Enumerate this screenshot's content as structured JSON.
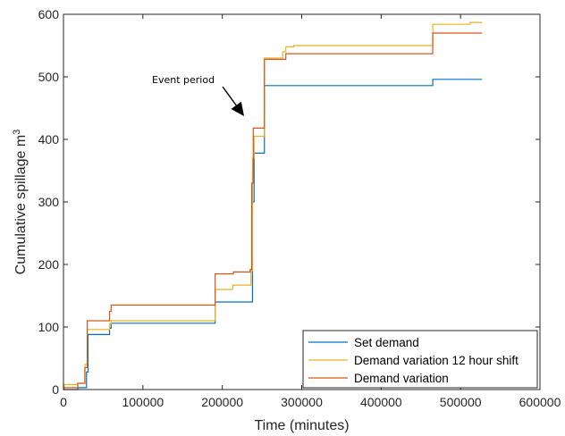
{
  "chart_data": {
    "type": "line",
    "title": "",
    "xlabel": "Time (minutes)",
    "ylabel_main": "Cumulative spillage m",
    "ylabel_sup": "3",
    "xlim": [
      0,
      600000
    ],
    "ylim": [
      0,
      600
    ],
    "xticks": [
      0,
      100000,
      200000,
      300000,
      400000,
      500000,
      600000
    ],
    "xtick_labels": [
      "0",
      "100000",
      "200000",
      "300000",
      "400000",
      "500000",
      "600000"
    ],
    "yticks": [
      0,
      100,
      200,
      300,
      400,
      500,
      600
    ],
    "ytick_labels": [
      "0",
      "100",
      "200",
      "300",
      "400",
      "500",
      "600"
    ],
    "grid": false,
    "legend_position": "bottom-right",
    "annotation": {
      "text": "Event period",
      "target_x": 233000,
      "target_y": 435
    },
    "series": [
      {
        "name": "Set demand",
        "color": "#0072BD",
        "points": [
          [
            0,
            0
          ],
          [
            18000,
            0
          ],
          [
            18000,
            3
          ],
          [
            29000,
            3
          ],
          [
            29000,
            28
          ],
          [
            31000,
            28
          ],
          [
            31000,
            88
          ],
          [
            58000,
            88
          ],
          [
            58000,
            98
          ],
          [
            60000,
            98
          ],
          [
            60000,
            106
          ],
          [
            191000,
            106
          ],
          [
            191000,
            140
          ],
          [
            238000,
            140
          ],
          [
            238000,
            300
          ],
          [
            240000,
            300
          ],
          [
            240000,
            378
          ],
          [
            253000,
            378
          ],
          [
            253000,
            486
          ],
          [
            465000,
            486
          ],
          [
            465000,
            496
          ],
          [
            527000,
            496
          ]
        ]
      },
      {
        "name": "Demand variation 12 hour shift",
        "color": "#EDB120",
        "points": [
          [
            0,
            0
          ],
          [
            1000,
            0
          ],
          [
            1000,
            8
          ],
          [
            18000,
            8
          ],
          [
            18000,
            10
          ],
          [
            27000,
            10
          ],
          [
            27000,
            40
          ],
          [
            30000,
            40
          ],
          [
            30000,
            96
          ],
          [
            58000,
            96
          ],
          [
            58000,
            105
          ],
          [
            60000,
            105
          ],
          [
            60000,
            110
          ],
          [
            191000,
            110
          ],
          [
            191000,
            160
          ],
          [
            213000,
            160
          ],
          [
            213000,
            167
          ],
          [
            236000,
            167
          ],
          [
            236000,
            190
          ],
          [
            238000,
            190
          ],
          [
            238000,
            370
          ],
          [
            240000,
            370
          ],
          [
            240000,
            405
          ],
          [
            253000,
            405
          ],
          [
            253000,
            530
          ],
          [
            276000,
            530
          ],
          [
            276000,
            540
          ],
          [
            280000,
            540
          ],
          [
            280000,
            548
          ],
          [
            290000,
            548
          ],
          [
            290000,
            550
          ],
          [
            465000,
            550
          ],
          [
            465000,
            584
          ],
          [
            512000,
            584
          ],
          [
            512000,
            587
          ],
          [
            527000,
            587
          ]
        ]
      },
      {
        "name": "Demand variation",
        "color": "#D95319",
        "points": [
          [
            0,
            0
          ],
          [
            1000,
            0
          ],
          [
            1000,
            3
          ],
          [
            18000,
            3
          ],
          [
            18000,
            10
          ],
          [
            27000,
            10
          ],
          [
            27000,
            35
          ],
          [
            30000,
            35
          ],
          [
            30000,
            110
          ],
          [
            58000,
            110
          ],
          [
            58000,
            125
          ],
          [
            60000,
            125
          ],
          [
            60000,
            135
          ],
          [
            191000,
            135
          ],
          [
            191000,
            185
          ],
          [
            214000,
            185
          ],
          [
            214000,
            188
          ],
          [
            235000,
            188
          ],
          [
            235000,
            192
          ],
          [
            237000,
            192
          ],
          [
            237000,
            330
          ],
          [
            239000,
            330
          ],
          [
            239000,
            418
          ],
          [
            253000,
            418
          ],
          [
            253000,
            528
          ],
          [
            280000,
            528
          ],
          [
            280000,
            537
          ],
          [
            465000,
            537
          ],
          [
            465000,
            570
          ],
          [
            527000,
            570
          ]
        ]
      }
    ]
  }
}
